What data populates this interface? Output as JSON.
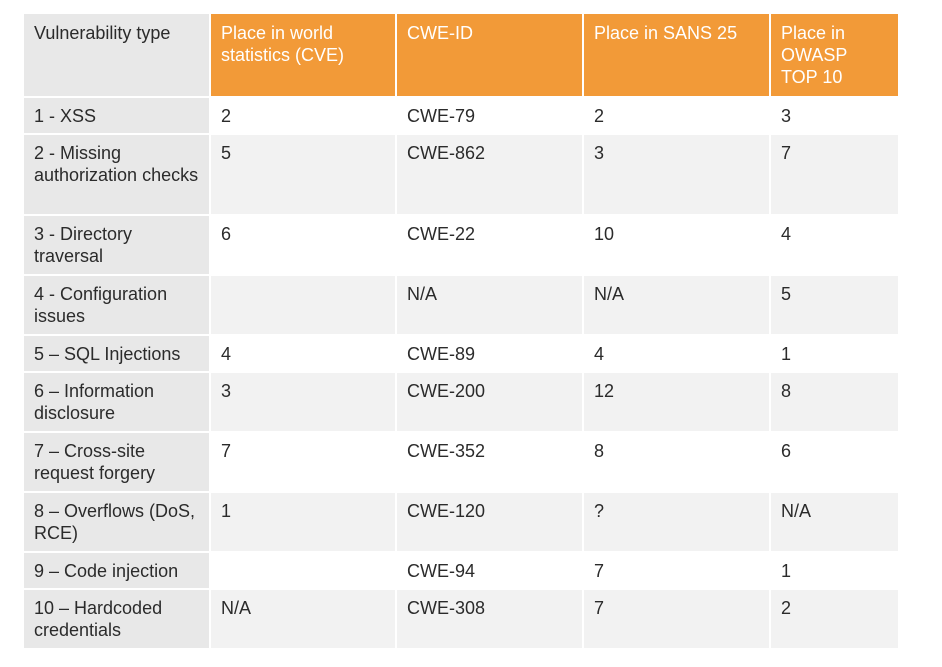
{
  "table": {
    "headers": [
      "Vulnerability type",
      "Place in world statistics (CVE)",
      "CWE-ID",
      "Place in SANS 25",
      "Place in OWASP TOP 10"
    ],
    "rows": [
      [
        "1 - XSS",
        "2",
        "CWE-79",
        "2",
        "3"
      ],
      [
        "2 - Missing authorization checks",
        "5",
        "CWE-862",
        "3",
        "7"
      ],
      [
        "3 - Directory traversal",
        "6",
        "CWE-22",
        "10",
        "4"
      ],
      [
        "4 - Configuration issues",
        "",
        "N/A",
        "N/A",
        "5"
      ],
      [
        "5 – SQL Injections",
        "4",
        "CWE-89",
        "4",
        "1"
      ],
      [
        "6 – Information disclosure",
        "3",
        "CWE-200",
        "12",
        "8"
      ],
      [
        "7 – Cross-site request forgery",
        "7",
        "CWE-352",
        "8",
        "6"
      ],
      [
        "8 – Overflows (DoS, RCE)",
        "1",
        "CWE-120",
        "?",
        "N/A"
      ],
      [
        "9 – Code injection",
        "",
        "CWE-94",
        "7",
        "1"
      ],
      [
        "10 – Hardcoded credentials",
        "N/A",
        "CWE-308",
        "7",
        "2"
      ]
    ]
  },
  "colors": {
    "header_accent": "#f29a38",
    "label_column": "#e8e8e8",
    "stripe": "#f2f2f2"
  }
}
